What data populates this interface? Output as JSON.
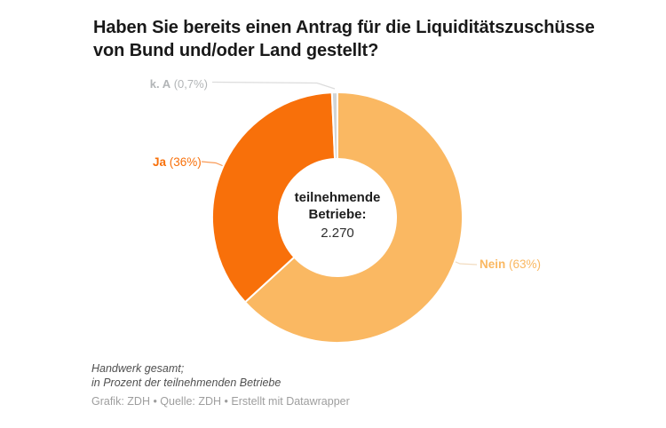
{
  "title": "Haben Sie bereits einen Antrag für die Liquiditätszuschüsse von Bund und/oder Land gestellt?",
  "chart_data": {
    "type": "pie",
    "subtype": "donut",
    "title": "Haben Sie bereits einen Antrag für die Liquiditätszuschüsse von Bund und/oder Land gestellt?",
    "start": "top",
    "direction": "clockwise",
    "slices": [
      {
        "label": "Nein",
        "pct_text": "(63%)",
        "value": 63,
        "color": "#FAB862",
        "label_color": "#FAB862"
      },
      {
        "label": "Ja",
        "pct_text": "(36%)",
        "value": 36,
        "color": "#F8700A",
        "label_color": "#F8700A"
      },
      {
        "label": "k. A",
        "pct_text": "(0,7%)",
        "value": 0.7,
        "color": "#D2D4D4",
        "label_color": "#B2B5B7"
      }
    ],
    "center_label_line1": "teilnehmende",
    "center_label_line2": "Betriebe:",
    "center_value": "2.270",
    "legend_position": "outside-labels"
  },
  "footer": {
    "note_line1": "Handwerk gesamt;",
    "note_line2": "in Prozent der teilnehmenden Betriebe",
    "credits": "Grafik: ZDH • Quelle: ZDH • Erstellt mit Datawrapper"
  },
  "colors": {
    "title_text": "#191919",
    "slice_stroke": "#FFFFFF",
    "connector_gray": "#DCDCDC",
    "connector_orange": "#F99B58",
    "connector_light": "#F2DCC0"
  }
}
